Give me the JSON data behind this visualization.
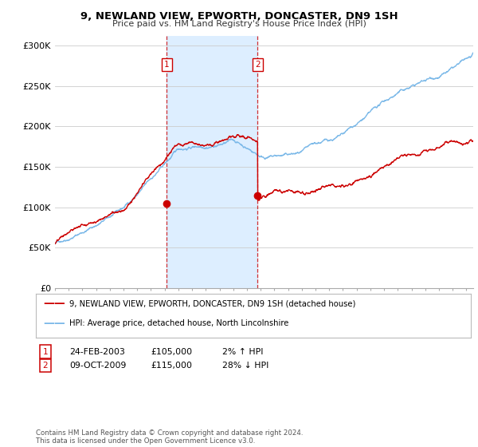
{
  "title": "9, NEWLAND VIEW, EPWORTH, DONCASTER, DN9 1SH",
  "subtitle": "Price paid vs. HM Land Registry's House Price Index (HPI)",
  "ylabel_ticks": [
    "£0",
    "£50K",
    "£100K",
    "£150K",
    "£200K",
    "£250K",
    "£300K"
  ],
  "ytick_values": [
    0,
    50000,
    100000,
    150000,
    200000,
    250000,
    300000
  ],
  "ylim": [
    0,
    312000
  ],
  "xlim_start": 1995.0,
  "xlim_end": 2025.5,
  "hpi_color": "#7ab8e8",
  "price_color": "#cc0000",
  "shading_color": "#ddeeff",
  "t1_year": 2003.15,
  "t1_price": 105000,
  "t2_year": 2009.78,
  "t2_price": 115000,
  "shade_x1": 2003.15,
  "shade_x2": 2009.78,
  "legend_label1": "9, NEWLAND VIEW, EPWORTH, DONCASTER, DN9 1SH (detached house)",
  "legend_label2": "HPI: Average price, detached house, North Lincolnshire",
  "footer": "Contains HM Land Registry data © Crown copyright and database right 2024.\nThis data is licensed under the Open Government Licence v3.0.",
  "table_row1_date": "24-FEB-2003",
  "table_row1_price": "£105,000",
  "table_row1_pct": "2% ↑ HPI",
  "table_row2_date": "09-OCT-2009",
  "table_row2_price": "£115,000",
  "table_row2_pct": "28% ↓ HPI"
}
